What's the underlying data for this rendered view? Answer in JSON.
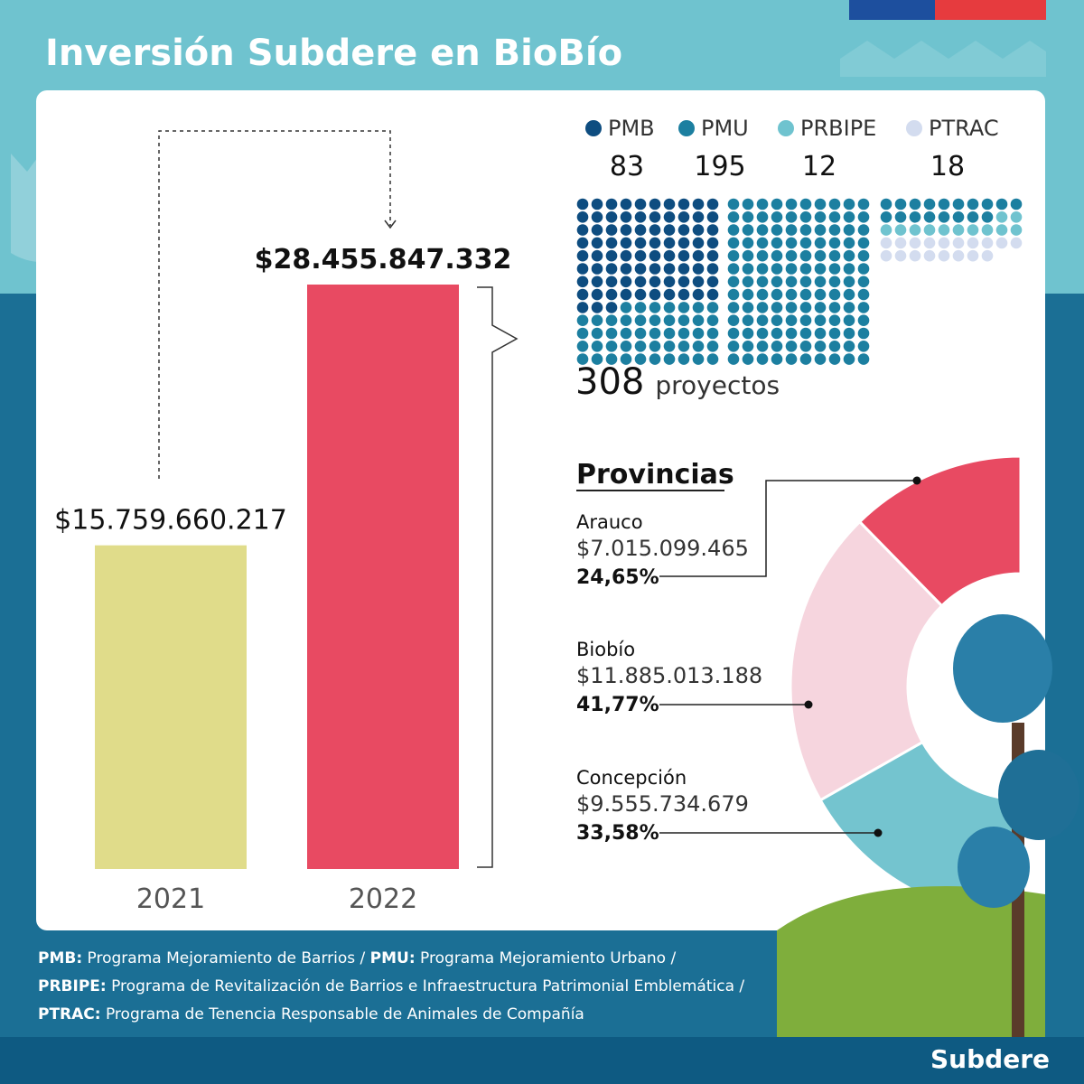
{
  "header": {
    "title": "Inversión Subdere en BioBío"
  },
  "chart_data": [
    {
      "type": "bar",
      "categories": [
        "2021",
        "2022"
      ],
      "values": [
        15759660217,
        28455847332
      ],
      "value_labels": [
        "$15.759.660.217",
        "$28.455.847.332"
      ],
      "colors": [
        "#e0dc8a",
        "#e84a62"
      ]
    },
    {
      "type": "waffle",
      "series": [
        {
          "name": "PMB",
          "color": "#0e4d80",
          "values": 83
        },
        {
          "name": "PMU",
          "color": "#1c7fa0",
          "values": 195
        },
        {
          "name": "PRBIPE",
          "color": "#6fc3cf",
          "values": 12
        },
        {
          "name": "PTRAC",
          "color": "#d3dcef",
          "values": 18
        }
      ],
      "total": 308,
      "total_unit": "proyectos"
    },
    {
      "type": "donut",
      "title": "Provincias",
      "categories": [
        "Arauco",
        "Biobío",
        "Concepción"
      ],
      "values": [
        24.65,
        41.77,
        33.58
      ],
      "value_labels": [
        "24,65%",
        "41,77%",
        "33,58%"
      ],
      "amounts": [
        7015099465,
        11885013188,
        9555734679
      ],
      "amount_labels": [
        "$7.015.099.465",
        "$11.885.013.188",
        "$9.555.734.679"
      ],
      "colors": [
        "#e84a62",
        "#f6d5de",
        "#74c4cf"
      ]
    }
  ],
  "footnotes": [
    [
      {
        "abbr": "PMB:",
        "text": " Programa Mejoramiento de Barrios / "
      },
      {
        "abbr": "PMU:",
        "text": " Programa Mejoramiento Urbano /"
      }
    ],
    [
      {
        "abbr": "PRBIPE:",
        "text": " Programa de Revitalización de Barrios e Infraestructura Patrimonial Emblemática /"
      }
    ],
    [
      {
        "abbr": "PTRAC:",
        "text": " Programa de Tenencia Responsable de Animales de Compañía"
      }
    ]
  ],
  "footer": {
    "logo": "Subdere"
  }
}
